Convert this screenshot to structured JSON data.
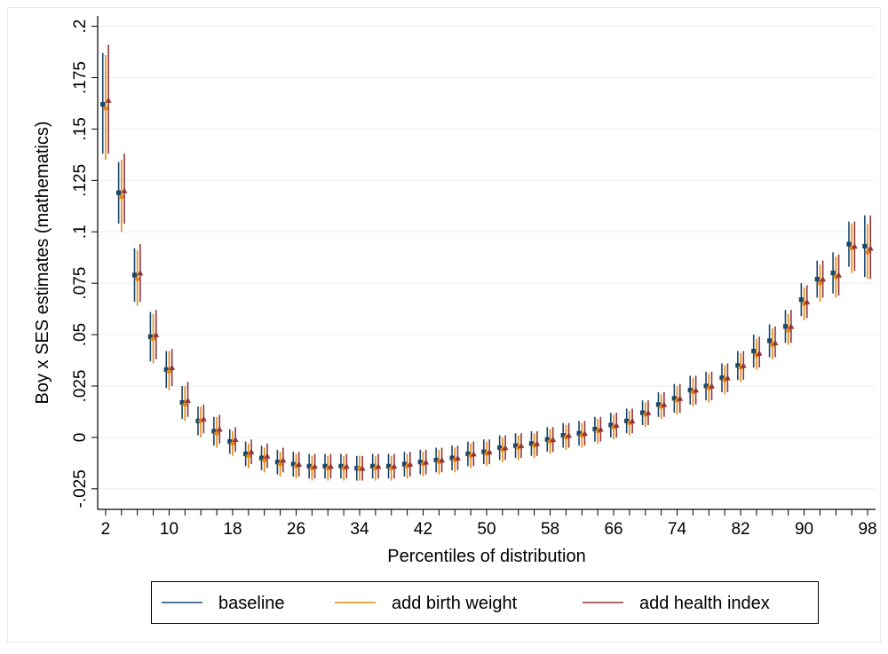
{
  "chart_data": {
    "type": "scatter",
    "title": "",
    "xlabel": "Percentiles of distribution",
    "ylabel": "Boy x SES estimates (mathematics)",
    "xlim": [
      1,
      99
    ],
    "ylim": [
      -0.035,
      0.205
    ],
    "x_ticks": [
      2,
      10,
      18,
      26,
      34,
      42,
      50,
      58,
      66,
      74,
      82,
      90,
      98
    ],
    "y_ticks": [
      -0.025,
      0,
      0.025,
      0.05,
      0.075,
      0.1,
      0.125,
      0.15,
      0.175,
      0.2
    ],
    "y_tick_labels": [
      "-.025",
      "0",
      ".025",
      ".05",
      ".075",
      ".1",
      ".125",
      ".15",
      ".175",
      ".2"
    ],
    "grid": true,
    "legend_position": "bottom",
    "x": [
      2,
      4,
      6,
      8,
      10,
      12,
      14,
      16,
      18,
      20,
      22,
      24,
      26,
      28,
      30,
      32,
      34,
      36,
      38,
      40,
      42,
      44,
      46,
      48,
      50,
      52,
      54,
      56,
      58,
      60,
      62,
      64,
      66,
      68,
      70,
      72,
      74,
      76,
      78,
      80,
      82,
      84,
      86,
      88,
      90,
      92,
      94,
      96,
      98
    ],
    "series": [
      {
        "name": "baseline",
        "color": "#1a476f",
        "marker": "square",
        "values": [
          0.162,
          0.119,
          0.079,
          0.049,
          0.033,
          0.017,
          0.008,
          0.003,
          -0.002,
          -0.008,
          -0.01,
          -0.012,
          -0.013,
          -0.014,
          -0.014,
          -0.014,
          -0.015,
          -0.014,
          -0.014,
          -0.013,
          -0.012,
          -0.011,
          -0.01,
          -0.008,
          -0.007,
          -0.005,
          -0.004,
          -0.003,
          -0.001,
          0.001,
          0.002,
          0.004,
          0.006,
          0.008,
          0.012,
          0.016,
          0.019,
          0.023,
          0.025,
          0.029,
          0.035,
          0.042,
          0.047,
          0.054,
          0.067,
          0.077,
          0.08,
          0.094,
          0.093
        ],
        "lower": [
          0.138,
          0.104,
          0.066,
          0.037,
          0.024,
          0.009,
          0.001,
          -0.004,
          -0.008,
          -0.014,
          -0.016,
          -0.018,
          -0.019,
          -0.02,
          -0.02,
          -0.02,
          -0.021,
          -0.02,
          -0.02,
          -0.019,
          -0.018,
          -0.017,
          -0.016,
          -0.014,
          -0.013,
          -0.011,
          -0.01,
          -0.009,
          -0.007,
          -0.005,
          -0.004,
          -0.002,
          0.0,
          0.002,
          0.006,
          0.01,
          0.012,
          0.016,
          0.018,
          0.022,
          0.028,
          0.034,
          0.039,
          0.046,
          0.059,
          0.068,
          0.07,
          0.083,
          0.078
        ],
        "upper": [
          0.187,
          0.134,
          0.092,
          0.061,
          0.042,
          0.025,
          0.015,
          0.01,
          0.004,
          -0.002,
          -0.004,
          -0.006,
          -0.007,
          -0.008,
          -0.008,
          -0.008,
          -0.009,
          -0.008,
          -0.008,
          -0.007,
          -0.006,
          -0.005,
          -0.004,
          -0.002,
          -0.001,
          0.001,
          0.002,
          0.003,
          0.005,
          0.007,
          0.008,
          0.01,
          0.012,
          0.014,
          0.018,
          0.022,
          0.026,
          0.03,
          0.032,
          0.036,
          0.042,
          0.05,
          0.055,
          0.062,
          0.075,
          0.086,
          0.09,
          0.105,
          0.108
        ]
      },
      {
        "name": "add birth weight",
        "color": "#e8870b",
        "marker": "diamond",
        "values": [
          0.16,
          0.117,
          0.077,
          0.048,
          0.032,
          0.016,
          0.008,
          0.002,
          -0.003,
          -0.009,
          -0.011,
          -0.013,
          -0.014,
          -0.015,
          -0.015,
          -0.015,
          -0.015,
          -0.015,
          -0.015,
          -0.014,
          -0.013,
          -0.012,
          -0.011,
          -0.009,
          -0.008,
          -0.006,
          -0.005,
          -0.004,
          -0.002,
          0.0,
          0.001,
          0.003,
          0.005,
          0.007,
          0.011,
          0.015,
          0.018,
          0.022,
          0.024,
          0.028,
          0.034,
          0.04,
          0.045,
          0.052,
          0.065,
          0.075,
          0.078,
          0.092,
          0.09
        ],
        "lower": [
          0.135,
          0.1,
          0.064,
          0.036,
          0.023,
          0.008,
          0.0,
          -0.005,
          -0.009,
          -0.015,
          -0.017,
          -0.019,
          -0.02,
          -0.021,
          -0.021,
          -0.021,
          -0.021,
          -0.021,
          -0.021,
          -0.02,
          -0.019,
          -0.018,
          -0.017,
          -0.015,
          -0.014,
          -0.012,
          -0.011,
          -0.01,
          -0.008,
          -0.006,
          -0.005,
          -0.003,
          -0.001,
          0.001,
          0.005,
          0.009,
          0.011,
          0.015,
          0.017,
          0.021,
          0.027,
          0.033,
          0.038,
          0.045,
          0.057,
          0.066,
          0.068,
          0.08,
          0.077
        ],
        "upper": [
          0.186,
          0.135,
          0.091,
          0.06,
          0.042,
          0.025,
          0.015,
          0.01,
          0.003,
          -0.003,
          -0.005,
          -0.007,
          -0.008,
          -0.009,
          -0.009,
          -0.009,
          -0.009,
          -0.009,
          -0.009,
          -0.008,
          -0.007,
          -0.006,
          -0.005,
          -0.003,
          -0.002,
          0.0,
          0.001,
          0.002,
          0.004,
          0.006,
          0.007,
          0.009,
          0.011,
          0.013,
          0.017,
          0.021,
          0.025,
          0.029,
          0.031,
          0.035,
          0.041,
          0.048,
          0.053,
          0.06,
          0.073,
          0.084,
          0.088,
          0.104,
          0.104
        ]
      },
      {
        "name": "add health index",
        "color": "#90353b",
        "marker": "triangle",
        "values": [
          0.164,
          0.12,
          0.08,
          0.05,
          0.034,
          0.018,
          0.009,
          0.004,
          -0.001,
          -0.007,
          -0.009,
          -0.011,
          -0.013,
          -0.014,
          -0.014,
          -0.014,
          -0.015,
          -0.014,
          -0.014,
          -0.013,
          -0.012,
          -0.011,
          -0.01,
          -0.008,
          -0.007,
          -0.005,
          -0.004,
          -0.003,
          -0.001,
          0.001,
          0.002,
          0.004,
          0.006,
          0.008,
          0.012,
          0.016,
          0.019,
          0.023,
          0.025,
          0.029,
          0.035,
          0.041,
          0.046,
          0.054,
          0.066,
          0.077,
          0.079,
          0.093,
          0.092
        ],
        "lower": [
          0.138,
          0.104,
          0.066,
          0.038,
          0.025,
          0.01,
          0.002,
          -0.003,
          -0.007,
          -0.013,
          -0.015,
          -0.017,
          -0.019,
          -0.02,
          -0.02,
          -0.02,
          -0.021,
          -0.02,
          -0.02,
          -0.019,
          -0.018,
          -0.017,
          -0.016,
          -0.014,
          -0.013,
          -0.011,
          -0.01,
          -0.009,
          -0.007,
          -0.005,
          -0.004,
          -0.002,
          0.0,
          0.002,
          0.006,
          0.01,
          0.012,
          0.016,
          0.018,
          0.022,
          0.028,
          0.034,
          0.039,
          0.046,
          0.058,
          0.068,
          0.069,
          0.081,
          0.077
        ],
        "upper": [
          0.191,
          0.138,
          0.094,
          0.062,
          0.043,
          0.027,
          0.016,
          0.011,
          0.005,
          -0.001,
          -0.003,
          -0.005,
          -0.007,
          -0.008,
          -0.008,
          -0.008,
          -0.009,
          -0.008,
          -0.008,
          -0.007,
          -0.006,
          -0.005,
          -0.004,
          -0.002,
          -0.001,
          0.001,
          0.002,
          0.003,
          0.005,
          0.007,
          0.008,
          0.01,
          0.012,
          0.014,
          0.018,
          0.022,
          0.026,
          0.03,
          0.032,
          0.036,
          0.042,
          0.049,
          0.054,
          0.062,
          0.074,
          0.086,
          0.089,
          0.105,
          0.108
        ]
      }
    ]
  }
}
